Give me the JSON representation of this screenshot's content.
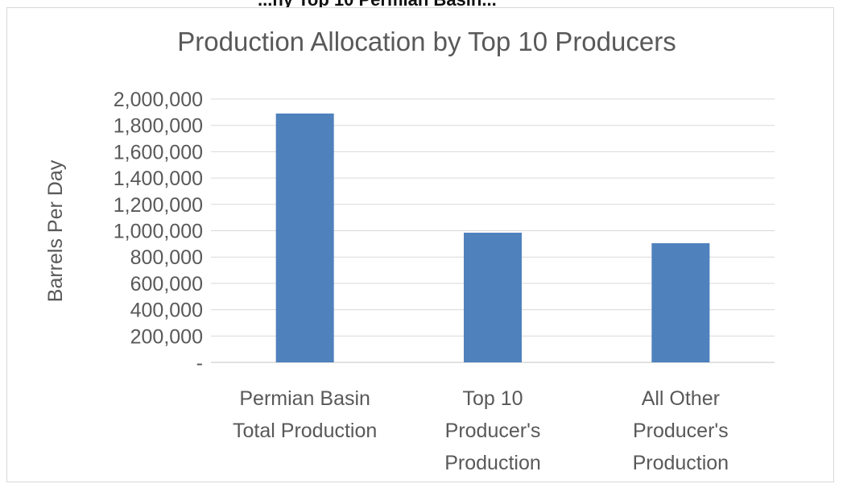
{
  "header_fragment": "...ny Top 10 Permian Basin...",
  "chart_data": {
    "type": "bar",
    "title": "Production Allocation by Top 10 Producers",
    "ylabel": "Barrels Per Day",
    "xlabel": "",
    "ylim": [
      0,
      2000000
    ],
    "ytick_values": [
      0,
      200000,
      400000,
      600000,
      800000,
      1000000,
      1200000,
      1400000,
      1600000,
      1800000,
      2000000
    ],
    "ytick_labels": [
      "-",
      "200,000",
      "400,000",
      "600,000",
      "800,000",
      "1,000,000",
      "1,200,000",
      "1,400,000",
      "1,600,000",
      "1,800,000",
      "2,000,000"
    ],
    "categories": [
      [
        "Permian Basin",
        "Total Production"
      ],
      [
        "Top 10",
        "Producer's",
        "Production"
      ],
      [
        "All Other",
        "Producer's",
        "Production"
      ]
    ],
    "values": [
      1890000,
      985000,
      905000
    ],
    "grid": true,
    "legend": "none",
    "bar_color": "#4f81bd"
  }
}
